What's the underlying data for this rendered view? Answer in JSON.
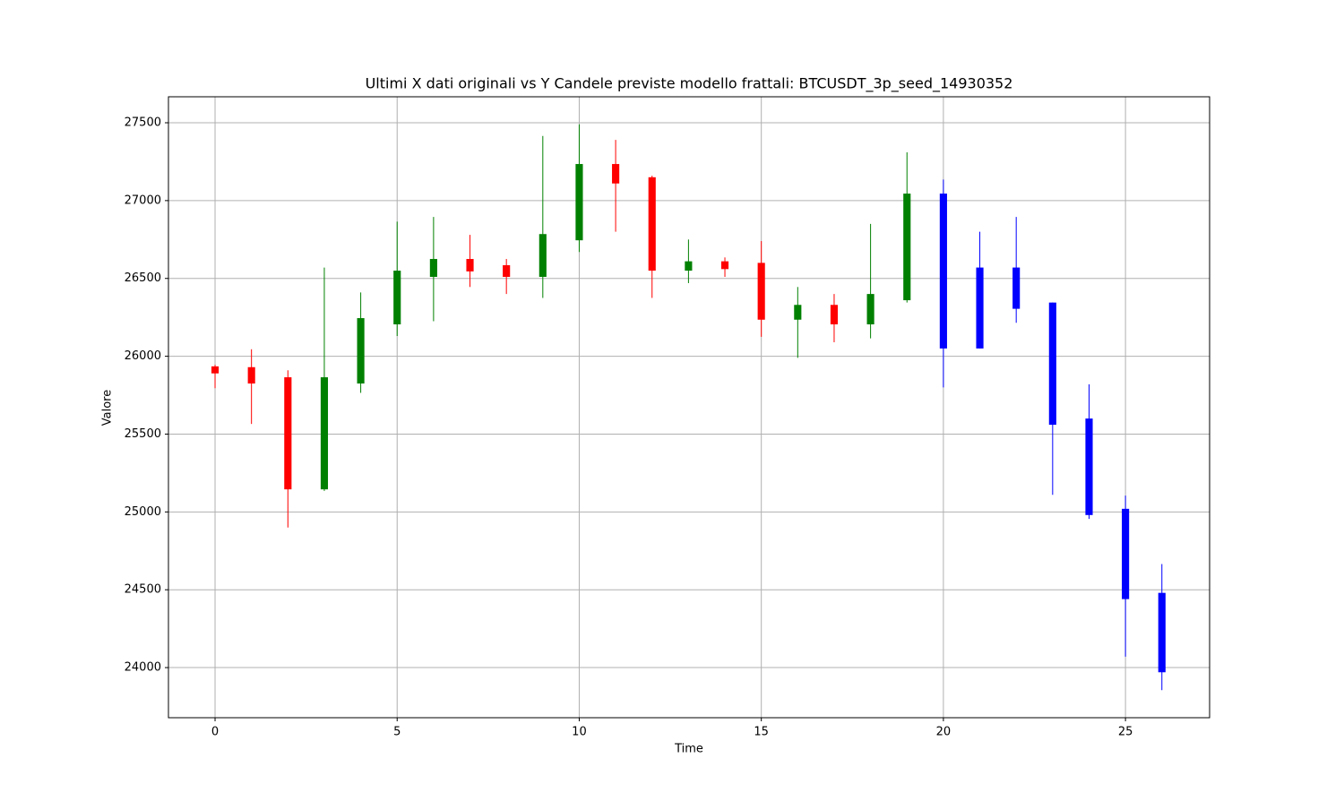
{
  "chart_data": {
    "type": "candlestick",
    "title": "Ultimi X dati originali vs Y Candele previste modello frattali: BTCUSDT_3p_seed_14930352",
    "x_label": "Time",
    "y_label": "Valore",
    "x": [
      0,
      1,
      2,
      3,
      4,
      5,
      6,
      7,
      8,
      9,
      10,
      11,
      12,
      13,
      14,
      15,
      16,
      17,
      18,
      19,
      20,
      21,
      22,
      23,
      24,
      25,
      26
    ],
    "open": [
      25935,
      25930,
      25865,
      25145,
      25825,
      26205,
      26510,
      26625,
      26585,
      26510,
      26745,
      27235,
      27150,
      26550,
      26610,
      26600,
      26235,
      26330,
      26205,
      26360,
      27045,
      26570,
      26570,
      26345,
      25600,
      25020,
      24480
    ],
    "high": [
      25945,
      26045,
      25910,
      26570,
      26410,
      26865,
      26895,
      26780,
      26625,
      27415,
      27490,
      27390,
      27160,
      26750,
      26635,
      26740,
      26445,
      26400,
      26850,
      27310,
      27135,
      26800,
      26895,
      26345,
      25820,
      25105,
      24665
    ],
    "low": [
      25795,
      25565,
      24900,
      25135,
      25765,
      26130,
      26225,
      26445,
      26400,
      26375,
      26670,
      26800,
      26375,
      26470,
      26510,
      26125,
      25990,
      26090,
      26115,
      26345,
      25800,
      26050,
      26215,
      25110,
      24955,
      24070,
      23855
    ],
    "close": [
      25890,
      25825,
      25145,
      25865,
      26245,
      26550,
      26625,
      26545,
      26510,
      26785,
      27235,
      27110,
      26550,
      26610,
      26560,
      26235,
      26330,
      26205,
      26400,
      27045,
      26050,
      26050,
      26305,
      25560,
      24980,
      24440,
      23970
    ],
    "colors": [
      "red",
      "red",
      "red",
      "green",
      "green",
      "green",
      "green",
      "red",
      "red",
      "green",
      "green",
      "red",
      "red",
      "green",
      "red",
      "red",
      "green",
      "red",
      "green",
      "green",
      "blue",
      "blue",
      "blue",
      "blue",
      "blue",
      "blue",
      "blue"
    ],
    "xlim": [
      -1.28,
      27.31
    ],
    "ylim": [
      23678,
      27667
    ],
    "xticks": [
      0,
      5,
      10,
      15,
      20,
      25
    ],
    "yticks": [
      24000,
      24500,
      25000,
      25500,
      26000,
      26500,
      27000,
      27500
    ],
    "grid": true
  }
}
